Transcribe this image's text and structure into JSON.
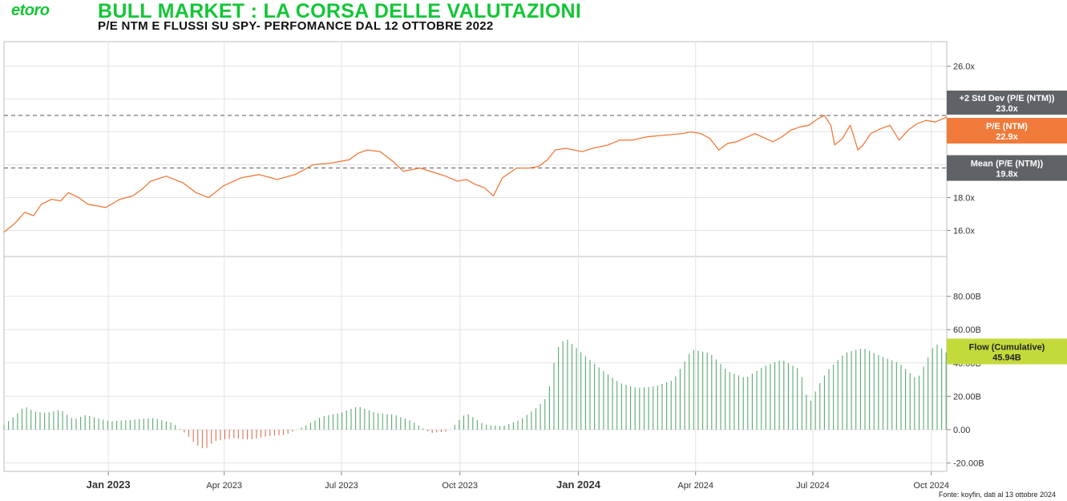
{
  "header": {
    "logo": "etoro",
    "title": "BULL MARKET : LA CORSA DELLE VALUTAZIONI",
    "subtitle": "P/E NTM E FLUSSI SU SPY- PERFOMANCE DAL 12 OTTOBRE 2022"
  },
  "footer": {
    "source": "Fonte: koyfin, dati al 13 ottobre 2024"
  },
  "colors": {
    "brand": "#13C636",
    "pe_line": "#F07A3A",
    "flow_pos": "#5BA871",
    "flow_neg": "#DE6E5A",
    "std_badge": "#5F6368",
    "mean_badge": "#5F6368",
    "pe_badge": "#F07A3A",
    "flow_badge": "#C3DA3A",
    "grid": "#e3e3e3"
  },
  "chart_data": [
    {
      "type": "line",
      "name": "pe_panel",
      "x_range": [
        "2022-10-12",
        "2024-10-13"
      ],
      "ylim": [
        15.0,
        27.0
      ],
      "y_ticks": [
        16.0,
        18.0,
        20.0,
        22.0,
        24.0,
        26.0
      ],
      "y_tick_labels": [
        "16.0x",
        "18.0x",
        "",
        "",
        "",
        "26.0x"
      ],
      "x_ticks": [
        {
          "date": "2023-01-01",
          "label": "Jan 2023",
          "bold": true
        },
        {
          "date": "2023-04-01",
          "label": "Apr 2023",
          "bold": false
        },
        {
          "date": "2023-07-01",
          "label": "Jul 2023",
          "bold": false
        },
        {
          "date": "2023-10-01",
          "label": "Oct 2023",
          "bold": false
        },
        {
          "date": "2024-01-01",
          "label": "Jan 2024",
          "bold": true
        },
        {
          "date": "2024-04-01",
          "label": "Apr 2024",
          "bold": false
        },
        {
          "date": "2024-07-01",
          "label": "Jul 2024",
          "bold": false
        },
        {
          "date": "2024-10-01",
          "label": "Oct 2024",
          "bold": false
        }
      ],
      "series": [
        {
          "name": "P/E (NTM)",
          "points": [
            [
              "2022-10-12",
              15.9
            ],
            [
              "2022-10-20",
              16.4
            ],
            [
              "2022-10-28",
              17.1
            ],
            [
              "2022-11-04",
              16.9
            ],
            [
              "2022-11-10",
              17.6
            ],
            [
              "2022-11-18",
              17.9
            ],
            [
              "2022-11-25",
              17.8
            ],
            [
              "2022-12-01",
              18.3
            ],
            [
              "2022-12-09",
              18.0
            ],
            [
              "2022-12-16",
              17.6
            ],
            [
              "2022-12-23",
              17.5
            ],
            [
              "2022-12-30",
              17.4
            ],
            [
              "2023-01-10",
              17.9
            ],
            [
              "2023-01-20",
              18.1
            ],
            [
              "2023-01-27",
              18.5
            ],
            [
              "2023-02-03",
              19.0
            ],
            [
              "2023-02-15",
              19.3
            ],
            [
              "2023-02-28",
              18.9
            ],
            [
              "2023-03-10",
              18.3
            ],
            [
              "2023-03-20",
              18.0
            ],
            [
              "2023-03-31",
              18.7
            ],
            [
              "2023-04-14",
              19.2
            ],
            [
              "2023-04-28",
              19.4
            ],
            [
              "2023-05-12",
              19.1
            ],
            [
              "2023-05-26",
              19.4
            ],
            [
              "2023-06-09",
              20.0
            ],
            [
              "2023-06-23",
              20.1
            ],
            [
              "2023-07-07",
              20.3
            ],
            [
              "2023-07-14",
              20.7
            ],
            [
              "2023-07-21",
              20.9
            ],
            [
              "2023-07-31",
              20.8
            ],
            [
              "2023-08-10",
              20.2
            ],
            [
              "2023-08-18",
              19.6
            ],
            [
              "2023-08-31",
              19.8
            ],
            [
              "2023-09-08",
              19.6
            ],
            [
              "2023-09-20",
              19.3
            ],
            [
              "2023-09-29",
              19.0
            ],
            [
              "2023-10-06",
              19.1
            ],
            [
              "2023-10-13",
              18.8
            ],
            [
              "2023-10-20",
              18.6
            ],
            [
              "2023-10-27",
              18.1
            ],
            [
              "2023-11-03",
              19.2
            ],
            [
              "2023-11-14",
              19.8
            ],
            [
              "2023-11-24",
              19.8
            ],
            [
              "2023-12-01",
              19.9
            ],
            [
              "2023-12-08",
              20.3
            ],
            [
              "2023-12-14",
              20.9
            ],
            [
              "2023-12-22",
              21.0
            ],
            [
              "2024-01-04",
              20.8
            ],
            [
              "2024-01-12",
              21.0
            ],
            [
              "2024-01-24",
              21.2
            ],
            [
              "2024-02-02",
              21.5
            ],
            [
              "2024-02-12",
              21.5
            ],
            [
              "2024-02-23",
              21.7
            ],
            [
              "2024-03-08",
              21.8
            ],
            [
              "2024-03-22",
              21.9
            ],
            [
              "2024-03-28",
              22.0
            ],
            [
              "2024-04-05",
              21.9
            ],
            [
              "2024-04-12",
              21.6
            ],
            [
              "2024-04-19",
              20.9
            ],
            [
              "2024-04-26",
              21.3
            ],
            [
              "2024-05-03",
              21.4
            ],
            [
              "2024-05-17",
              21.9
            ],
            [
              "2024-05-31",
              21.4
            ],
            [
              "2024-06-07",
              21.7
            ],
            [
              "2024-06-14",
              22.1
            ],
            [
              "2024-06-21",
              22.3
            ],
            [
              "2024-06-28",
              22.4
            ],
            [
              "2024-07-05",
              22.8
            ],
            [
              "2024-07-10",
              23.0
            ],
            [
              "2024-07-15",
              22.4
            ],
            [
              "2024-07-18",
              21.2
            ],
            [
              "2024-07-24",
              21.6
            ],
            [
              "2024-07-30",
              22.4
            ],
            [
              "2024-08-02",
              21.7
            ],
            [
              "2024-08-05",
              20.9
            ],
            [
              "2024-08-09",
              21.2
            ],
            [
              "2024-08-15",
              21.9
            ],
            [
              "2024-08-23",
              22.2
            ],
            [
              "2024-08-30",
              22.4
            ],
            [
              "2024-09-06",
              21.5
            ],
            [
              "2024-09-13",
              22.1
            ],
            [
              "2024-09-20",
              22.5
            ],
            [
              "2024-09-27",
              22.7
            ],
            [
              "2024-10-04",
              22.6
            ],
            [
              "2024-10-13",
              22.9
            ]
          ]
        }
      ],
      "reference_lines": [
        {
          "name": "+2 Std Dev (P/E (NTM))",
          "value": 23.0,
          "label": "23.0x",
          "style": "dashed"
        },
        {
          "name": "Mean (P/E (NTM))",
          "value": 19.8,
          "label": "19.8x",
          "style": "dashed"
        }
      ],
      "badges": [
        {
          "name": "+2 Std Dev (P/E (NTM))",
          "value_label": "23.0x"
        },
        {
          "name": "P/E (NTM)",
          "value_label": "22.9x"
        },
        {
          "name": "Mean (P/E (NTM))",
          "value_label": "19.8x"
        }
      ],
      "grid": true
    },
    {
      "type": "bar",
      "name": "flow_panel",
      "x_range": [
        "2022-10-12",
        "2024-10-13"
      ],
      "ylim": [
        -25,
        100
      ],
      "y_ticks": [
        -20,
        0,
        20,
        40,
        60,
        80
      ],
      "y_tick_labels": [
        "-20.00B",
        "0.00",
        "20.00B",
        "40.00B",
        "60.00B",
        "80.00B"
      ],
      "unit": "B",
      "series": [
        {
          "name": "Flow (Cumulative)",
          "points": [
            [
              "2022-10-12",
              3
            ],
            [
              "2022-10-20",
              8
            ],
            [
              "2022-10-28",
              14
            ],
            [
              "2022-11-04",
              11
            ],
            [
              "2022-11-14",
              10
            ],
            [
              "2022-11-25",
              12
            ],
            [
              "2022-12-05",
              6
            ],
            [
              "2022-12-15",
              9
            ],
            [
              "2022-12-22",
              7
            ],
            [
              "2023-01-03",
              5
            ],
            [
              "2023-01-20",
              6
            ],
            [
              "2023-02-05",
              7
            ],
            [
              "2023-02-20",
              4
            ],
            [
              "2023-03-03",
              -3
            ],
            [
              "2023-03-10",
              -9
            ],
            [
              "2023-03-17",
              -12
            ],
            [
              "2023-03-24",
              -7
            ],
            [
              "2023-04-07",
              -5
            ],
            [
              "2023-04-21",
              -6
            ],
            [
              "2023-05-05",
              -4
            ],
            [
              "2023-05-19",
              -3
            ],
            [
              "2023-06-02",
              2
            ],
            [
              "2023-06-16",
              8
            ],
            [
              "2023-06-30",
              10
            ],
            [
              "2023-07-14",
              14
            ],
            [
              "2023-07-28",
              10
            ],
            [
              "2023-08-11",
              9
            ],
            [
              "2023-08-25",
              5
            ],
            [
              "2023-09-08",
              -2
            ],
            [
              "2023-09-22",
              -1
            ],
            [
              "2023-10-06",
              10
            ],
            [
              "2023-10-20",
              3
            ],
            [
              "2023-11-03",
              2
            ],
            [
              "2023-11-17",
              6
            ],
            [
              "2023-12-01",
              14
            ],
            [
              "2023-12-08",
              20
            ],
            [
              "2023-12-15",
              48
            ],
            [
              "2023-12-22",
              55
            ],
            [
              "2024-01-05",
              45
            ],
            [
              "2024-01-19",
              36
            ],
            [
              "2024-02-02",
              28
            ],
            [
              "2024-02-16",
              25
            ],
            [
              "2024-03-01",
              26
            ],
            [
              "2024-03-15",
              30
            ],
            [
              "2024-03-29",
              48
            ],
            [
              "2024-04-12",
              46
            ],
            [
              "2024-04-26",
              35
            ],
            [
              "2024-05-10",
              31
            ],
            [
              "2024-05-24",
              38
            ],
            [
              "2024-06-07",
              42
            ],
            [
              "2024-06-21",
              36
            ],
            [
              "2024-06-28",
              15
            ],
            [
              "2024-07-05",
              26
            ],
            [
              "2024-07-12",
              35
            ],
            [
              "2024-07-26",
              46
            ],
            [
              "2024-08-09",
              49
            ],
            [
              "2024-08-23",
              44
            ],
            [
              "2024-09-06",
              40
            ],
            [
              "2024-09-20",
              30
            ],
            [
              "2024-10-04",
              52
            ],
            [
              "2024-10-13",
              45.94
            ]
          ]
        }
      ],
      "badges": [
        {
          "name": "Flow (Cumulative)",
          "value_label": "45.94B"
        }
      ],
      "grid": true
    }
  ]
}
